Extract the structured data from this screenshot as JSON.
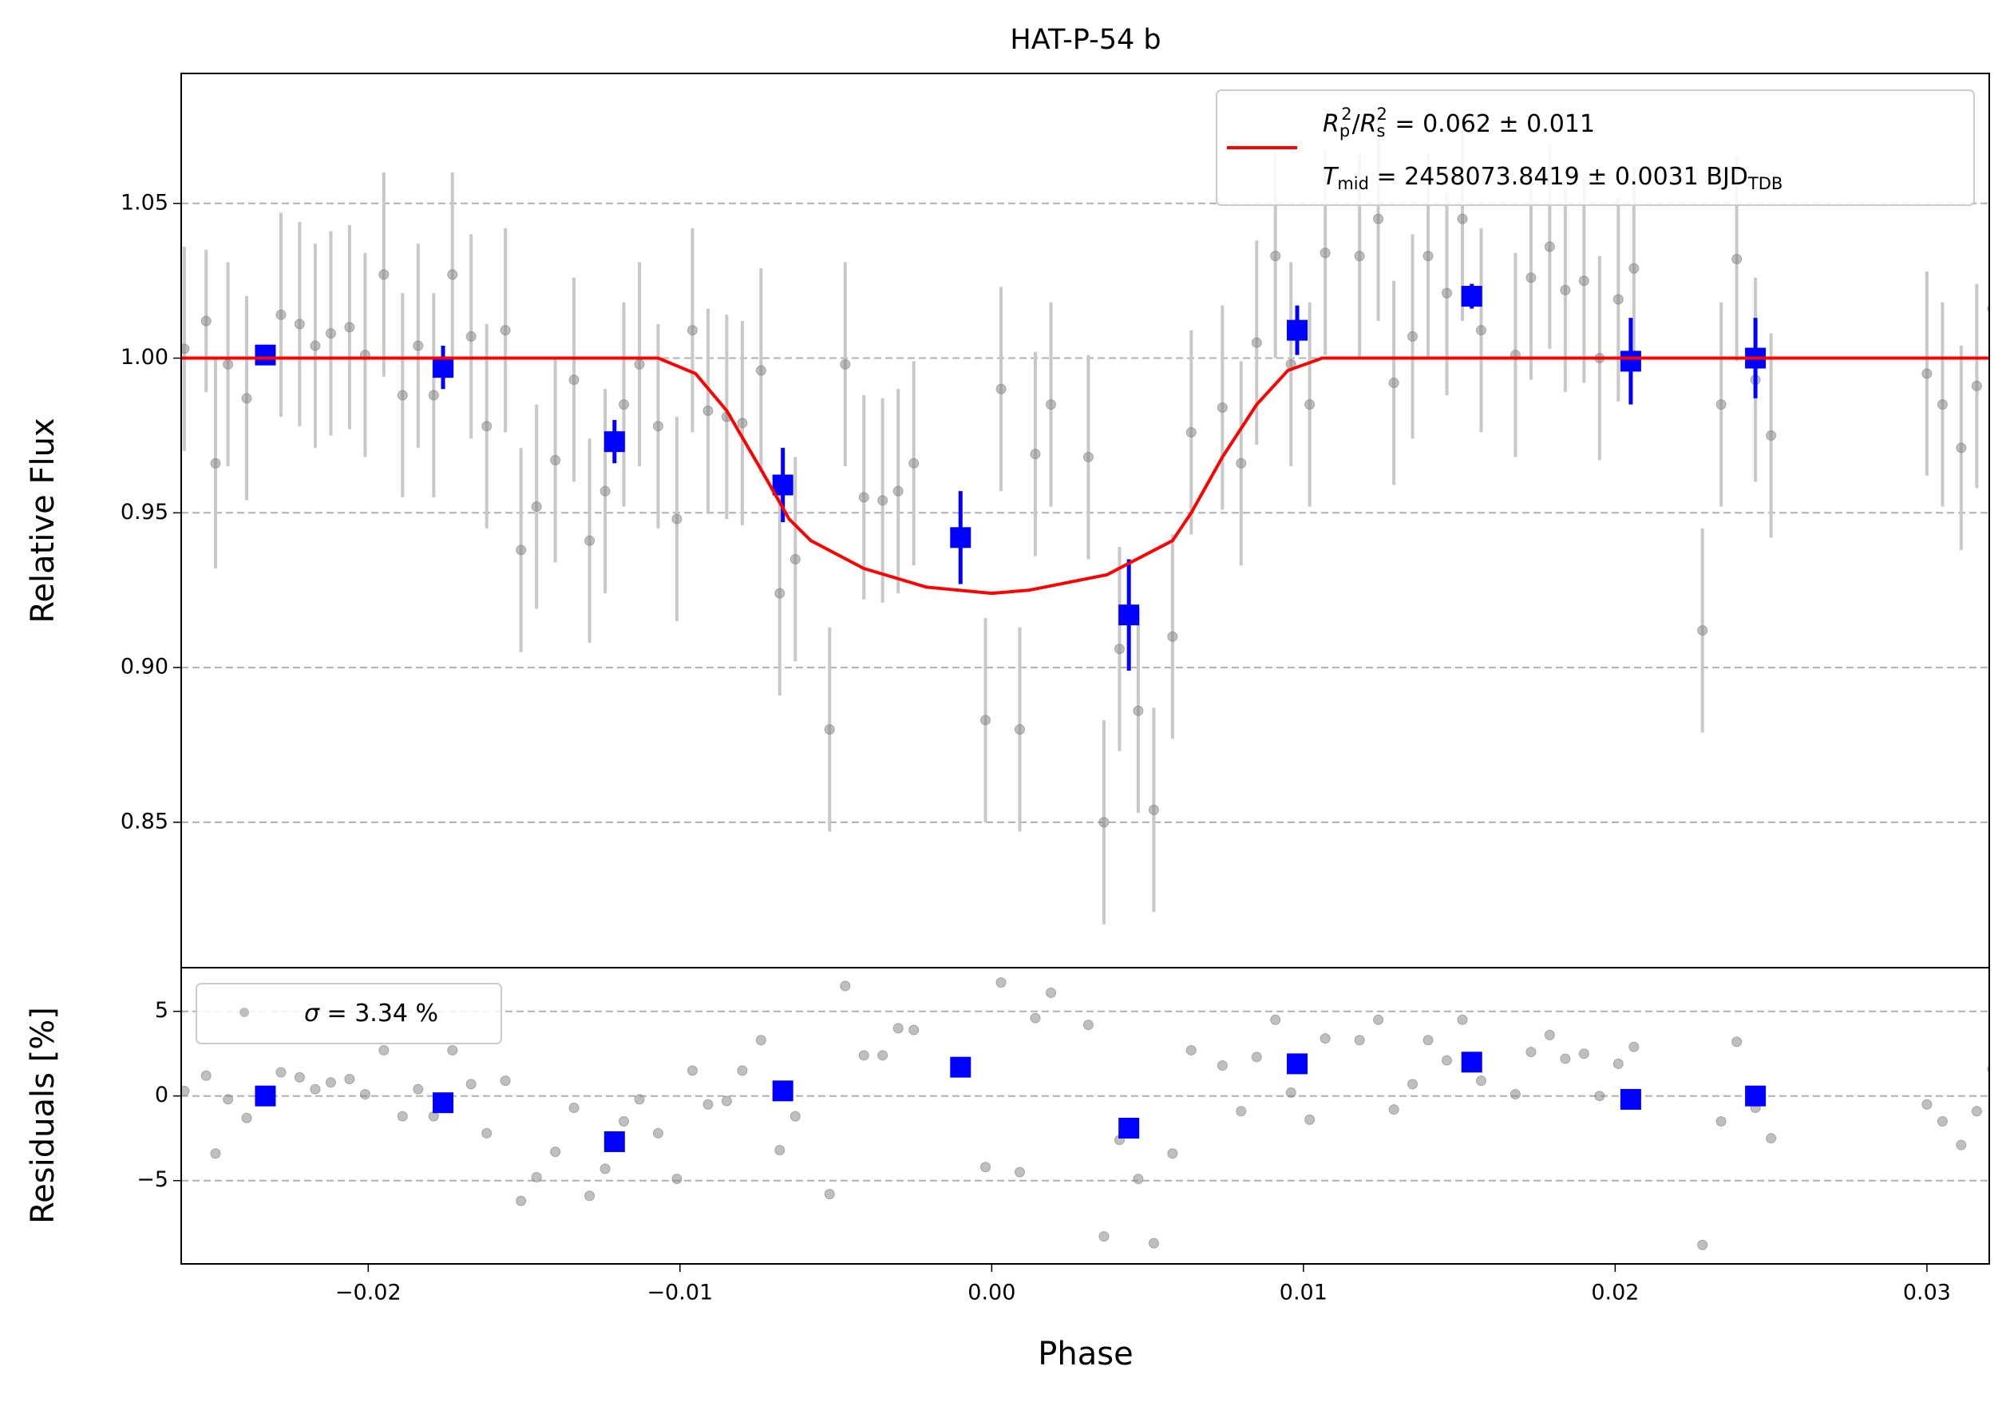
{
  "chart_data": [
    {
      "type": "scatter",
      "title": "HAT-P-54 b",
      "ylabel": "Relative Flux",
      "xlim": [
        -0.026,
        0.032
      ],
      "ylim": [
        0.803,
        1.092
      ],
      "yticks": [
        0.85,
        {
          "value": 0.9,
          "label": "0.90"
        },
        0.95,
        {
          "value": 1.0,
          "label": "1.00"
        },
        1.05
      ],
      "grid": true,
      "series": [
        {
          "kind": "points",
          "color": "#808080",
          "errcolor": "#c8c8c8",
          "x": [
            -0.0259,
            -0.0252,
            -0.0249,
            -0.0245,
            -0.0239,
            -0.0228,
            -0.0222,
            -0.0217,
            -0.0212,
            -0.0206,
            -0.0201,
            -0.0195,
            -0.0189,
            -0.0184,
            -0.0179,
            -0.0173,
            -0.0167,
            -0.0162,
            -0.0156,
            -0.0151,
            -0.0146,
            -0.014,
            -0.0134,
            -0.0129,
            -0.0124,
            -0.0118,
            -0.0113,
            -0.0107,
            -0.0101,
            -0.0096,
            -0.0091,
            -0.0085,
            -0.008,
            -0.0074,
            -0.0068,
            -0.0063,
            -0.0052,
            -0.0047,
            -0.0041,
            -0.0035,
            -0.003,
            -0.0025,
            -0.0002,
            0.0003,
            0.0009,
            0.0014,
            0.0019,
            0.0031,
            0.0036,
            0.0041,
            0.0047,
            0.0052,
            0.0058,
            0.0064,
            0.0074,
            0.008,
            0.0085,
            0.0091,
            0.0096,
            0.0102,
            0.0107,
            0.0118,
            0.0124,
            0.0129,
            0.0135,
            0.014,
            0.0146,
            0.0151,
            0.0157,
            0.0168,
            0.0173,
            0.0179,
            0.0184,
            0.019,
            0.0195,
            0.0201,
            0.0206,
            0.0228,
            0.0234,
            0.0239,
            0.0245,
            0.025,
            0.03,
            0.0305,
            0.0311,
            0.0316,
            0.0321
          ],
          "values": [
            1.003,
            1.012,
            0.966,
            0.998,
            0.987,
            1.014,
            1.011,
            1.004,
            1.008,
            1.01,
            1.001,
            1.027,
            0.988,
            1.004,
            0.988,
            1.027,
            1.007,
            0.978,
            1.009,
            0.938,
            0.952,
            0.967,
            0.993,
            0.941,
            0.957,
            0.985,
            0.998,
            0.978,
            0.948,
            1.009,
            0.983,
            0.981,
            0.979,
            0.996,
            0.924,
            0.935,
            0.88,
            0.998,
            0.955,
            0.954,
            0.957,
            0.966,
            0.883,
            0.99,
            0.88,
            0.969,
            0.985,
            0.968,
            0.85,
            0.906,
            0.886,
            0.854,
            0.91,
            0.976,
            0.984,
            0.966,
            1.005,
            1.033,
            0.998,
            0.985,
            1.034,
            1.033,
            1.045,
            0.992,
            1.007,
            1.033,
            1.021,
            1.045,
            1.009,
            1.001,
            1.026,
            1.036,
            1.022,
            1.025,
            1.0,
            1.019,
            1.029,
            0.912,
            0.985,
            1.032,
            0.993,
            0.975,
            0.995,
            0.985,
            0.971,
            0.991,
            1.016
          ],
          "errors": [
            0.033,
            0.023,
            0.034,
            0.033,
            0.033,
            0.033,
            0.033,
            0.033,
            0.033,
            0.033,
            0.033,
            0.033,
            0.033,
            0.033,
            0.033,
            0.033,
            0.033,
            0.033,
            0.033,
            0.033,
            0.033,
            0.033,
            0.033,
            0.033,
            0.033,
            0.033,
            0.033,
            0.033,
            0.033,
            0.033,
            0.033,
            0.033,
            0.033,
            0.033,
            0.033,
            0.033,
            0.033,
            0.033,
            0.033,
            0.033,
            0.033,
            0.033,
            0.033,
            0.033,
            0.033,
            0.033,
            0.033,
            0.033,
            0.033,
            0.033,
            0.033,
            0.033,
            0.033,
            0.033,
            0.033,
            0.033,
            0.033,
            0.033,
            0.033,
            0.033,
            0.033,
            0.033,
            0.033,
            0.033,
            0.033,
            0.033,
            0.033,
            0.033,
            0.033,
            0.033,
            0.033,
            0.033,
            0.033,
            0.033,
            0.033,
            0.033,
            0.033,
            0.033,
            0.033,
            0.033,
            0.033,
            0.033,
            0.033,
            0.033,
            0.033,
            0.033,
            0.033
          ]
        },
        {
          "kind": "binned",
          "color": "#0000ff",
          "x": [
            -0.0233,
            -0.0176,
            -0.0121,
            -0.0067,
            -0.001,
            0.0044,
            0.0098,
            0.0154,
            0.0205,
            0.0245
          ],
          "values": [
            1.001,
            0.997,
            0.973,
            0.959,
            0.942,
            0.917,
            1.009,
            1.02,
            0.999,
            1.0
          ],
          "errors": [
            0.003,
            0.007,
            0.007,
            0.012,
            0.015,
            0.018,
            0.008,
            0.004,
            0.014,
            0.013
          ]
        },
        {
          "kind": "line",
          "color": "#ff0000",
          "name": [
            [
              "R",
              "i"
            ],
            [
              "p",
              "sub"
            ],
            [
              "2",
              "sup"
            ],
            [
              "/",
              ""
            ],
            [
              "R",
              "i"
            ],
            [
              "s",
              "sub"
            ],
            [
              "2",
              "sup"
            ],
            [
              " = 0.062 ± 0.011",
              ""
            ]
          ],
          "name2": [
            [
              "T",
              "i"
            ],
            [
              "mid",
              "sub"
            ],
            [
              " = 2458073.8419 ± 0.0031 BJD",
              ""
            ],
            [
              "TDB",
              "sub"
            ]
          ],
          "x": [
            -0.026,
            -0.0107,
            -0.0095,
            -0.0085,
            -0.0074,
            -0.0065,
            -0.0058,
            -0.0041,
            -0.0021,
            0.0,
            0.0012,
            0.0037,
            0.0058,
            0.0064,
            0.0074,
            0.0085,
            0.0095,
            0.0106,
            0.032
          ],
          "values": [
            1.0,
            1.0,
            0.995,
            0.983,
            0.964,
            0.948,
            0.941,
            0.932,
            0.926,
            0.924,
            0.925,
            0.93,
            0.941,
            0.95,
            0.968,
            0.985,
            0.996,
            1.0,
            1.0
          ]
        }
      ]
    },
    {
      "type": "scatter",
      "ylabel": "Residuals [%]",
      "xlabel": "Phase",
      "xlim": [
        -0.026,
        0.032
      ],
      "ylim": [
        -9.92,
        7.58
      ],
      "xticks": [
        {
          "value": -0.02,
          "label": "−0.02"
        },
        {
          "value": -0.01,
          "label": "−0.01"
        },
        {
          "value": 0,
          "label": "0.00"
        },
        {
          "value": 0.01,
          "label": "0.01"
        },
        {
          "value": 0.02,
          "label": "0.02"
        },
        {
          "value": 0.03,
          "label": "0.03"
        }
      ],
      "yticks": [
        {
          "value": -5,
          "label": "−5"
        },
        0,
        5
      ],
      "grid": true,
      "series": [
        {
          "kind": "points",
          "color": "#808080",
          "name": [
            [
              "σ",
              "i"
            ],
            [
              " = 3.34 %",
              ""
            ]
          ],
          "x": [
            -0.0259,
            -0.0252,
            -0.0249,
            -0.0245,
            -0.0239,
            -0.0228,
            -0.0222,
            -0.0217,
            -0.0212,
            -0.0206,
            -0.0201,
            -0.0195,
            -0.0189,
            -0.0184,
            -0.0179,
            -0.0173,
            -0.0167,
            -0.0162,
            -0.0156,
            -0.0151,
            -0.0146,
            -0.014,
            -0.0134,
            -0.0129,
            -0.0124,
            -0.0118,
            -0.0113,
            -0.0107,
            -0.0101,
            -0.0096,
            -0.0091,
            -0.0085,
            -0.008,
            -0.0074,
            -0.0068,
            -0.0063,
            -0.0052,
            -0.0047,
            -0.0041,
            -0.0035,
            -0.003,
            -0.0025,
            -0.0002,
            0.0003,
            0.0009,
            0.0014,
            0.0019,
            0.0031,
            0.0036,
            0.0041,
            0.0047,
            0.0052,
            0.0058,
            0.0064,
            0.0074,
            0.008,
            0.0085,
            0.0091,
            0.0096,
            0.0102,
            0.0107,
            0.0118,
            0.0124,
            0.0129,
            0.0135,
            0.014,
            0.0146,
            0.0151,
            0.0157,
            0.0168,
            0.0173,
            0.0179,
            0.0184,
            0.019,
            0.0195,
            0.0201,
            0.0206,
            0.0228,
            0.0234,
            0.0239,
            0.0245,
            0.025,
            0.03,
            0.0305,
            0.0311,
            0.0316,
            0.0321
          ],
          "values": [
            0.3,
            1.2,
            -3.4,
            -0.2,
            -1.3,
            1.4,
            1.1,
            0.4,
            0.8,
            1.0,
            0.1,
            2.7,
            -1.2,
            0.4,
            -1.2,
            2.7,
            0.7,
            -2.2,
            0.9,
            -6.2,
            -4.8,
            -3.3,
            -0.7,
            -5.9,
            -4.3,
            -1.5,
            -0.2,
            -2.2,
            -4.9,
            1.5,
            -0.5,
            -0.3,
            1.5,
            3.3,
            -3.2,
            -1.2,
            -5.8,
            6.5,
            2.4,
            2.4,
            4.0,
            3.9,
            -4.2,
            6.7,
            -4.5,
            4.6,
            6.1,
            4.2,
            -8.3,
            -2.6,
            -4.9,
            -8.7,
            -3.4,
            2.7,
            1.8,
            -0.9,
            2.3,
            4.5,
            0.2,
            -1.4,
            3.4,
            3.3,
            4.5,
            -0.8,
            0.7,
            3.3,
            2.1,
            4.5,
            0.9,
            0.1,
            2.6,
            3.6,
            2.2,
            2.5,
            0.0,
            1.9,
            2.9,
            -8.8,
            -1.5,
            3.2,
            -0.7,
            -2.5,
            -0.5,
            -1.5,
            -2.9,
            -0.9,
            1.6
          ]
        },
        {
          "kind": "binned",
          "color": "#0000ff",
          "x": [
            -0.0233,
            -0.0176,
            -0.0121,
            -0.0067,
            -0.001,
            0.0044,
            0.0098,
            0.0154,
            0.0205,
            0.0245
          ],
          "values": [
            0.0,
            -0.4,
            -2.7,
            0.3,
            1.7,
            -1.9,
            1.9,
            2.0,
            -0.2,
            0.0
          ]
        }
      ]
    }
  ]
}
